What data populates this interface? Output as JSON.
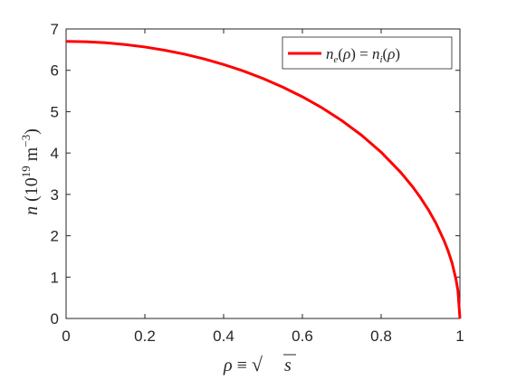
{
  "chart_data": {
    "type": "line",
    "title": "",
    "xlabel": "ρ ≡ √s",
    "ylabel": "n (10^19 m^-3)",
    "xlim": [
      0,
      1
    ],
    "ylim": [
      0,
      7
    ],
    "xticks": [
      0,
      0.2,
      0.4,
      0.6,
      0.8,
      1
    ],
    "xtick_labels": [
      "0",
      "0.2",
      "0.4",
      "0.6",
      "0.8",
      "1"
    ],
    "yticks": [
      0,
      1,
      2,
      3,
      4,
      5,
      6,
      7
    ],
    "ytick_labels": [
      "0",
      "1",
      "2",
      "3",
      "4",
      "5",
      "6",
      "7"
    ],
    "grid": false,
    "legend_position": "top-right",
    "series": [
      {
        "name": "n_e(ρ) = n_i(ρ)",
        "color": "#ff0000",
        "x": [
          0,
          0.05,
          0.1,
          0.15,
          0.2,
          0.25,
          0.3,
          0.35,
          0.4,
          0.45,
          0.5,
          0.55,
          0.6,
          0.65,
          0.7,
          0.75,
          0.8,
          0.85,
          0.88,
          0.9,
          0.92,
          0.94,
          0.96,
          0.97,
          0.98,
          0.99,
          0.995,
          1
        ],
        "y": [
          6.7,
          6.692,
          6.666,
          6.623,
          6.564,
          6.486,
          6.391,
          6.277,
          6.141,
          5.984,
          5.802,
          5.595,
          5.36,
          5.092,
          4.785,
          4.432,
          4.02,
          3.529,
          3.183,
          2.92,
          2.627,
          2.287,
          1.876,
          1.633,
          1.346,
          0.945,
          0.669,
          0
        ]
      }
    ]
  }
}
